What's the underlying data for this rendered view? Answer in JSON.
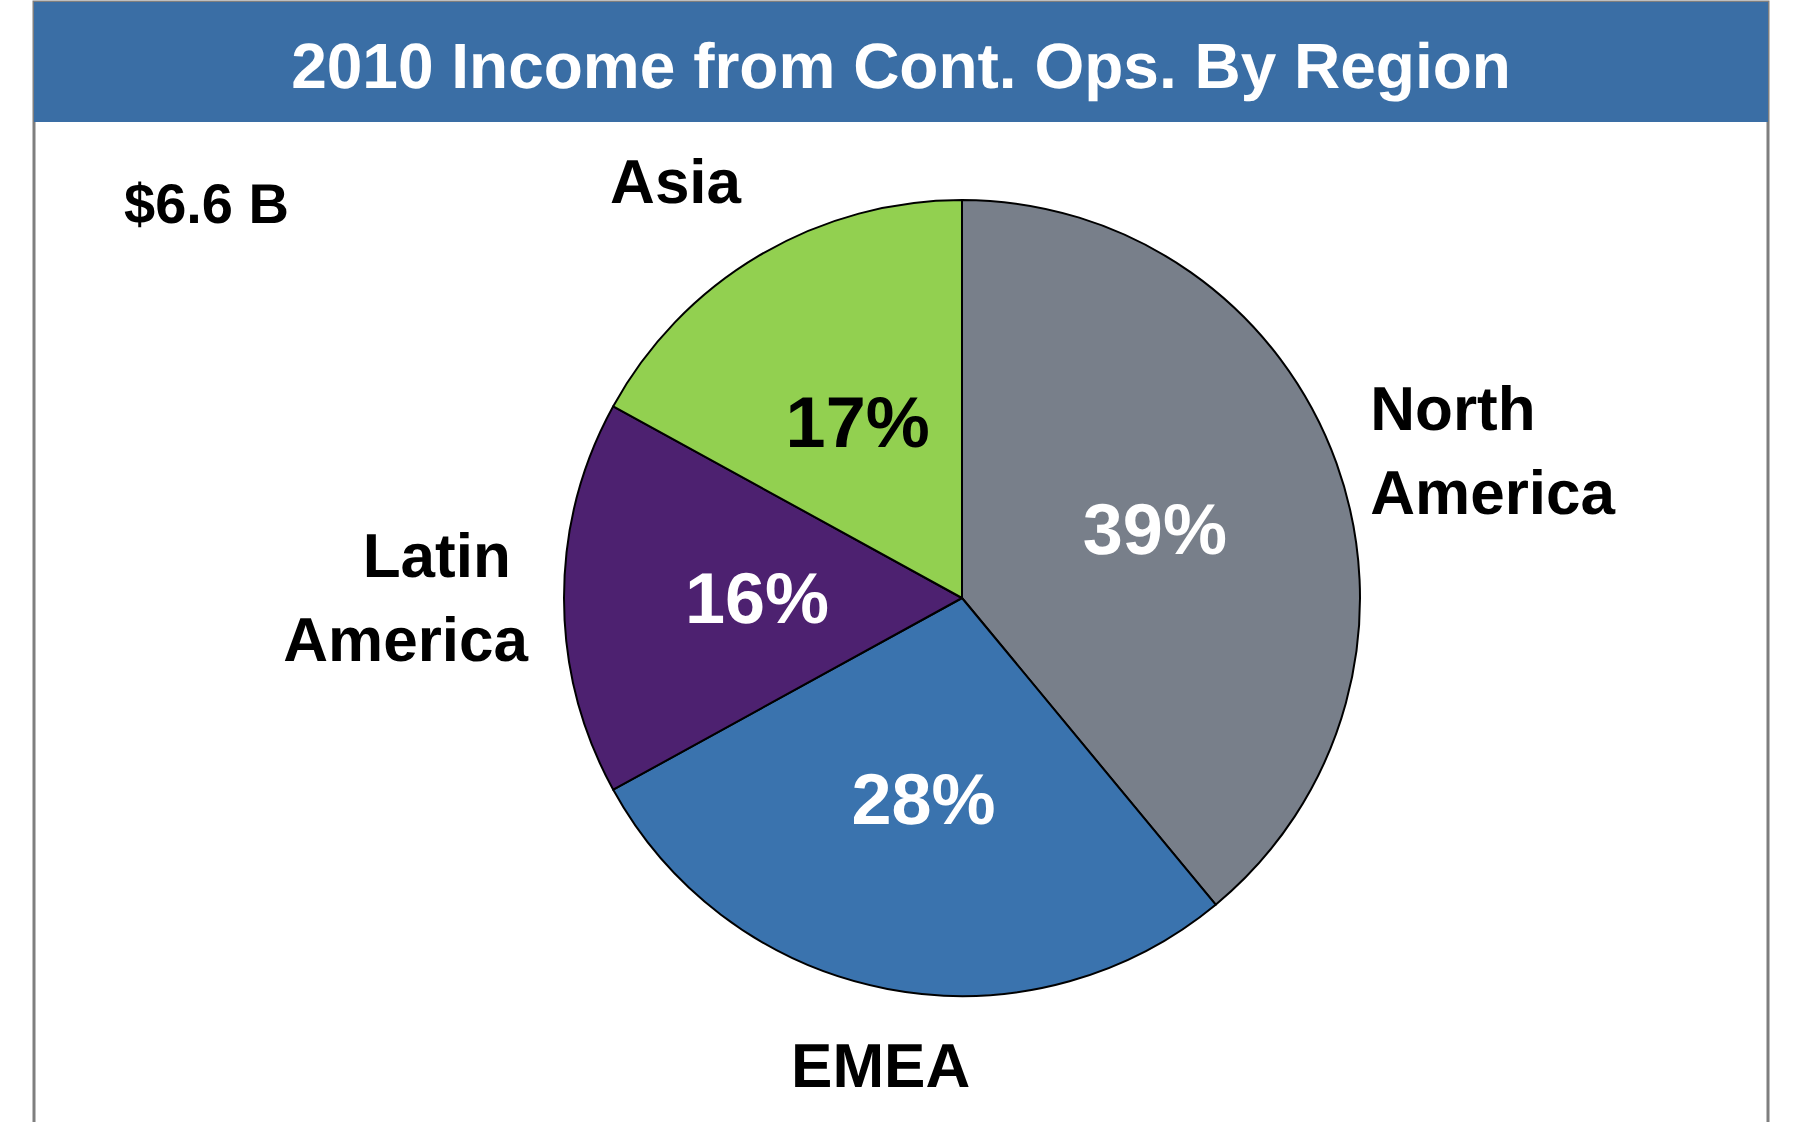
{
  "chart_data": {
    "type": "pie",
    "title": "2010 Income from Cont. Ops. By Region",
    "categories": [
      "North America",
      "EMEA",
      "Latin America",
      "Asia"
    ],
    "values": [
      39,
      28,
      16,
      17
    ],
    "colors": [
      "#787f8a",
      "#3a73ae",
      "#4d2170",
      "#92d050"
    ],
    "value_labels": [
      "39%",
      "28%",
      "16%",
      "17%"
    ],
    "legend": false,
    "annotations": [
      "$6.6 B"
    ]
  }
}
